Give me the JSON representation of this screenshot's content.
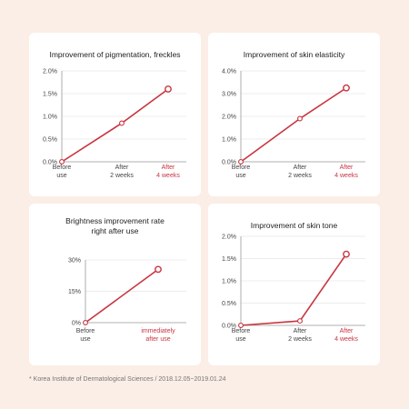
{
  "footnote": "* Korea Institute of Dermatological Sciences / 2018.12.05~2019.01.24",
  "colors": {
    "background": "#fbeee6",
    "line": "#c8343f",
    "highlight": "#c8343f",
    "axis": "#999999",
    "grid": "#e6e6e6",
    "text": "#444444"
  },
  "chart_data": [
    {
      "type": "line",
      "title": [
        "Improvement of pigmentation, freckles"
      ],
      "categories": [
        [
          "Before",
          "use"
        ],
        [
          "After",
          "2 weeks"
        ],
        [
          "After",
          "4 weeks"
        ]
      ],
      "highlight_index": 2,
      "values": [
        0.0,
        0.85,
        1.6
      ],
      "yticks": [
        "0.0%",
        "0.5%",
        "1.0%",
        "1.5%",
        "2.0%"
      ],
      "ylim": [
        0,
        2.0
      ]
    },
    {
      "type": "line",
      "title": [
        "Improvement of skin elasticity"
      ],
      "categories": [
        [
          "Before",
          "use"
        ],
        [
          "After",
          "2 weeks"
        ],
        [
          "After",
          "4 weeks"
        ]
      ],
      "highlight_index": 2,
      "values": [
        0.0,
        1.9,
        3.25
      ],
      "yticks": [
        "0.0%",
        "1.0%",
        "2.0%",
        "3.0%",
        "4.0%"
      ],
      "ylim": [
        0,
        4.0
      ]
    },
    {
      "type": "line",
      "title": [
        "Brightness improvement rate",
        "right after use"
      ],
      "categories": [
        [
          "Before",
          "use"
        ],
        [
          "immediately",
          "after use"
        ]
      ],
      "highlight_index": 1,
      "values": [
        0,
        25.5
      ],
      "yticks": [
        "0%",
        "15%",
        "30%"
      ],
      "ylim": [
        0,
        30
      ]
    },
    {
      "type": "line",
      "title": [
        "Improvement of skin tone"
      ],
      "categories": [
        [
          "Before",
          "use"
        ],
        [
          "After",
          "2 weeks"
        ],
        [
          "After",
          "4 weeks"
        ]
      ],
      "highlight_index": 2,
      "values": [
        0.0,
        0.1,
        1.6
      ],
      "yticks": [
        "0.0%",
        "0.5%",
        "1.0%",
        "1.5%",
        "2.0%"
      ],
      "ylim": [
        0,
        2.0
      ]
    }
  ]
}
